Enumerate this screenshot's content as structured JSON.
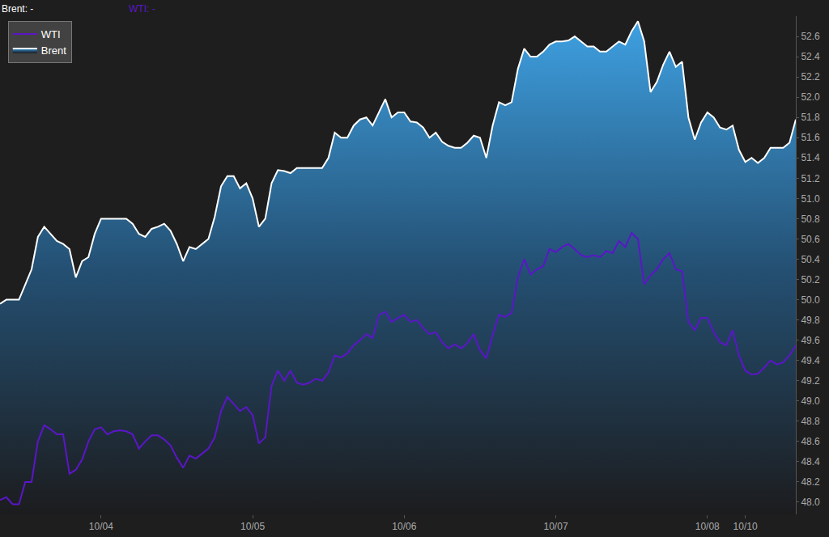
{
  "chart_data": {
    "type": "line",
    "annotations": [
      "Brent: -",
      "WTI: -"
    ],
    "categories": [
      null,
      null,
      null,
      null,
      null,
      null,
      null,
      null,
      null,
      null,
      null,
      null,
      null,
      null,
      null,
      null,
      "10/04",
      null,
      null,
      null,
      null,
      null,
      null,
      null,
      null,
      null,
      null,
      null,
      null,
      null,
      null,
      null,
      null,
      null,
      null,
      null,
      null,
      null,
      null,
      null,
      "10/05",
      null,
      null,
      null,
      null,
      null,
      null,
      null,
      null,
      null,
      null,
      null,
      null,
      null,
      null,
      null,
      null,
      null,
      null,
      null,
      null,
      null,
      null,
      null,
      "10/06",
      null,
      null,
      null,
      null,
      null,
      null,
      null,
      null,
      null,
      null,
      null,
      null,
      null,
      null,
      null,
      null,
      null,
      null,
      null,
      null,
      null,
      null,
      null,
      "10/07",
      null,
      null,
      null,
      null,
      null,
      null,
      null,
      null,
      null,
      null,
      null,
      null,
      null,
      null,
      null,
      null,
      null,
      null,
      null,
      null,
      null,
      null,
      null,
      "10/08",
      null,
      null,
      null,
      null,
      null,
      "10/10",
      null,
      null,
      null,
      null,
      null,
      null,
      null,
      null
    ],
    "series": [
      {
        "name": "Brent",
        "type": "area",
        "color": "#ffffff",
        "line_style": "solid",
        "values": [
          49.96,
          50.0,
          50.0,
          50.0,
          50.15,
          50.3,
          50.62,
          50.72,
          50.65,
          50.58,
          50.55,
          50.5,
          50.22,
          50.38,
          50.42,
          50.65,
          50.8,
          50.8,
          50.8,
          50.8,
          50.8,
          50.75,
          50.65,
          50.62,
          50.7,
          50.72,
          50.75,
          50.68,
          50.55,
          50.38,
          50.52,
          50.5,
          50.55,
          50.6,
          50.82,
          51.12,
          51.22,
          51.22,
          51.1,
          51.15,
          51.0,
          50.72,
          50.8,
          51.15,
          51.28,
          51.27,
          51.25,
          51.3,
          51.3,
          51.3,
          51.3,
          51.3,
          51.4,
          51.65,
          51.6,
          51.6,
          51.72,
          51.78,
          51.8,
          51.72,
          51.85,
          51.98,
          51.8,
          51.85,
          51.85,
          51.76,
          51.75,
          51.7,
          51.6,
          51.65,
          51.56,
          51.52,
          51.5,
          51.5,
          51.55,
          51.62,
          51.6,
          51.4,
          51.72,
          51.95,
          51.92,
          51.95,
          52.28,
          52.48,
          52.4,
          52.4,
          52.45,
          52.52,
          52.55,
          52.55,
          52.56,
          52.6,
          52.55,
          52.5,
          52.5,
          52.45,
          52.45,
          52.5,
          52.55,
          52.52,
          52.65,
          52.75,
          52.55,
          52.05,
          52.15,
          52.32,
          52.45,
          52.3,
          52.35,
          51.8,
          51.58,
          51.75,
          51.85,
          51.8,
          51.7,
          51.68,
          51.72,
          51.48,
          51.36,
          51.4,
          51.35,
          51.4,
          51.5,
          51.5,
          51.5,
          51.55,
          51.78
        ]
      },
      {
        "name": "WTI",
        "type": "line",
        "color": "#5b16c9",
        "line_style": "solid",
        "values": [
          48.02,
          48.05,
          47.98,
          47.98,
          48.2,
          48.2,
          48.6,
          48.76,
          48.72,
          48.67,
          48.67,
          48.28,
          48.32,
          48.42,
          48.6,
          48.72,
          48.74,
          48.67,
          48.7,
          48.71,
          48.7,
          48.67,
          48.53,
          48.6,
          48.66,
          48.66,
          48.62,
          48.56,
          48.44,
          48.34,
          48.46,
          48.43,
          48.48,
          48.53,
          48.64,
          48.9,
          49.04,
          48.97,
          48.9,
          48.94,
          48.86,
          48.58,
          48.64,
          49.15,
          49.3,
          49.2,
          49.3,
          49.18,
          49.16,
          49.18,
          49.22,
          49.2,
          49.28,
          49.45,
          49.43,
          49.47,
          49.55,
          49.6,
          49.66,
          49.62,
          49.85,
          49.88,
          49.78,
          49.82,
          49.85,
          49.78,
          49.8,
          49.72,
          49.66,
          49.68,
          49.58,
          49.52,
          49.56,
          49.52,
          49.57,
          49.66,
          49.5,
          49.42,
          49.65,
          49.85,
          49.83,
          49.87,
          50.22,
          50.4,
          50.25,
          50.3,
          50.33,
          50.5,
          50.47,
          50.52,
          50.55,
          50.5,
          50.44,
          50.42,
          50.44,
          50.42,
          50.48,
          50.46,
          50.58,
          50.52,
          50.66,
          50.6,
          50.15,
          50.24,
          50.3,
          50.4,
          50.46,
          50.3,
          50.28,
          49.78,
          49.7,
          49.82,
          49.82,
          49.68,
          49.58,
          49.55,
          49.7,
          49.45,
          49.3,
          49.26,
          49.27,
          49.33,
          49.4,
          49.36,
          49.38,
          49.45,
          49.55
        ]
      }
    ],
    "ylim": [
      47.88,
      52.8
    ],
    "yticks": [
      {
        "value": 48,
        "label": "48.0"
      },
      48.2,
      48.4,
      48.6,
      48.8,
      {
        "value": 49,
        "label": "49.0"
      },
      49.2,
      49.4,
      49.6,
      49.8,
      {
        "value": 50,
        "label": "50.0"
      },
      50.2,
      50.4,
      50.6,
      50.8,
      {
        "value": 51,
        "label": "51.0"
      },
      51.2,
      51.4,
      51.6,
      51.8,
      {
        "value": 52,
        "label": "52.0"
      },
      52.2,
      52.4,
      52.6
    ],
    "grid": false,
    "legend": "upper left"
  }
}
